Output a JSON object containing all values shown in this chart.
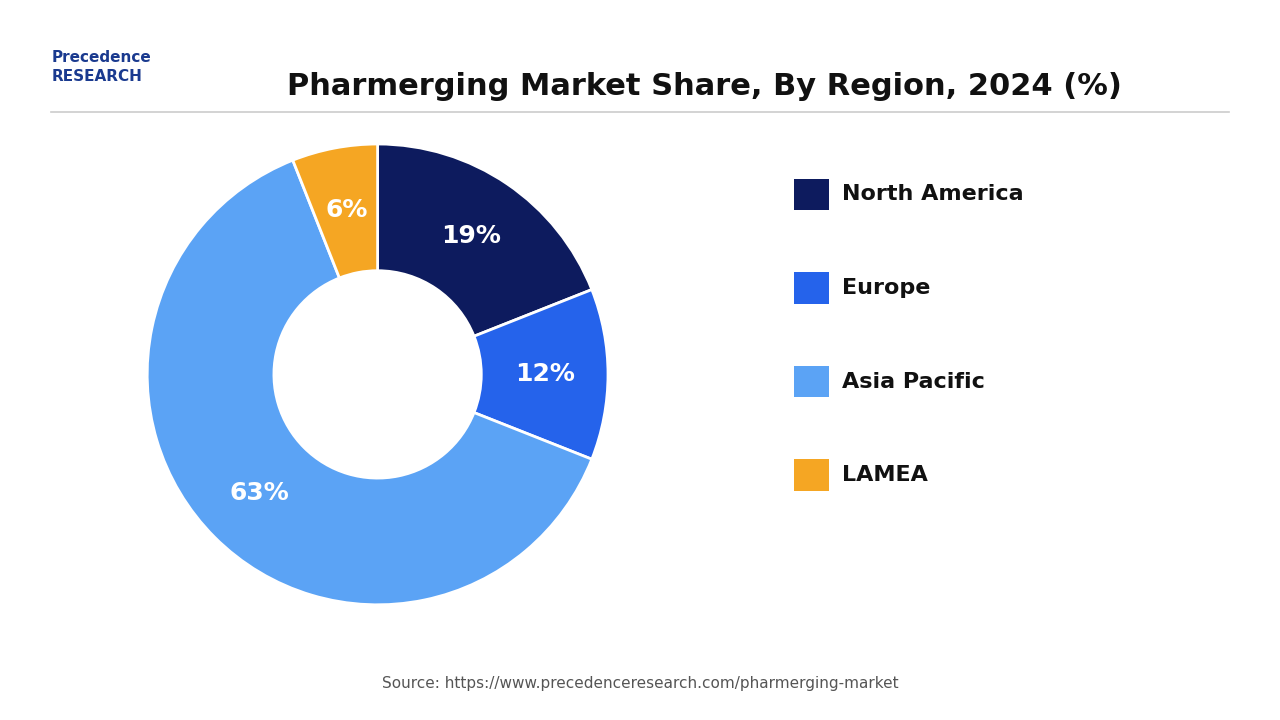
{
  "title": "Pharmerging Market Share, By Region, 2024 (%)",
  "slices": [
    19,
    12,
    63,
    6
  ],
  "labels": [
    "North America",
    "Europe",
    "Asia Pacific",
    "LAMEA"
  ],
  "colors": [
    "#0d1b5e",
    "#2563eb",
    "#5ba3f5",
    "#f5a623"
  ],
  "pct_labels": [
    "19%",
    "12%",
    "63%",
    "6%"
  ],
  "source": "Source: https://www.precedenceresearch.com/pharmerging-market",
  "background_color": "#ffffff",
  "title_fontsize": 22,
  "legend_fontsize": 16,
  "pct_fontsize": 18,
  "source_fontsize": 11
}
